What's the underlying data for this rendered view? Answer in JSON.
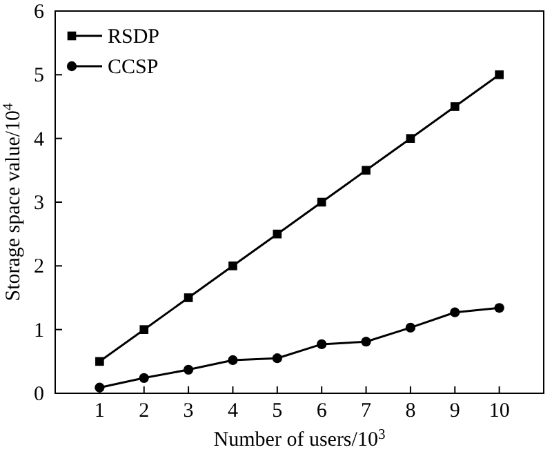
{
  "chart_data": {
    "type": "line",
    "xlabel": "Number of users/10$^{3}$",
    "ylabel": "Storage space value/10$^{4}$",
    "x": [
      1,
      2,
      3,
      4,
      5,
      6,
      7,
      8,
      9,
      10
    ],
    "xlim": [
      0,
      11
    ],
    "xticks": [
      1,
      2,
      3,
      4,
      5,
      6,
      7,
      8,
      9,
      10
    ],
    "ylim": [
      0,
      6
    ],
    "yticks": [
      0,
      1,
      2,
      3,
      4,
      5,
      6
    ],
    "legend": "top left",
    "grid": false,
    "series": [
      {
        "name": "RSDP",
        "color": "#000000",
        "marker": "square",
        "values": [
          0.5,
          1,
          1.5,
          2,
          2.5,
          3,
          3.5,
          4,
          4.5,
          5
        ]
      },
      {
        "name": "CCSP",
        "color": "#000000",
        "marker": "circle",
        "values": [
          0.09,
          0.24,
          0.37,
          0.52,
          0.55,
          0.77,
          0.81,
          1.03,
          1.27,
          1.34
        ]
      }
    ]
  }
}
